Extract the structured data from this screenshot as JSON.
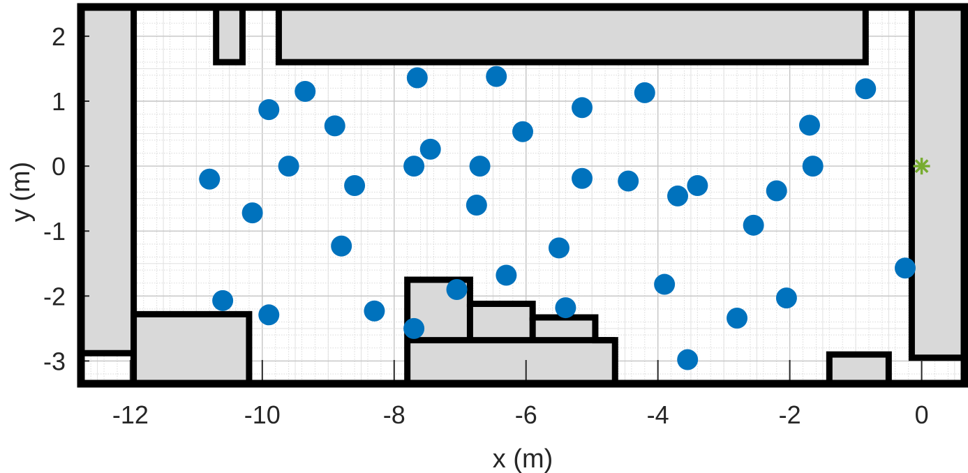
{
  "chart_data": {
    "type": "scatter",
    "title": "",
    "xlabel": "x (m)",
    "ylabel": "y (m)",
    "xlim": [
      -12.75,
      0.65
    ],
    "ylim": [
      -3.35,
      2.45
    ],
    "xticks": [
      -12,
      -10,
      -8,
      -6,
      -4,
      -2,
      0
    ],
    "yticks": [
      -3,
      -2,
      -1,
      0,
      1,
      2
    ],
    "xtick_labels": [
      "-12",
      "-10",
      "-8",
      "-6",
      "-4",
      "-2",
      "0"
    ],
    "ytick_labels": [
      "-3",
      "-2",
      "-1",
      "0",
      "1",
      "2"
    ],
    "grid": true,
    "minor_grid": true,
    "series": [
      {
        "marker": "circle",
        "color": "#0072BD",
        "points": [
          [
            -7.65,
            1.36
          ],
          [
            -6.45,
            1.38
          ],
          [
            -9.35,
            1.15
          ],
          [
            -4.2,
            1.13
          ],
          [
            -0.85,
            1.19
          ],
          [
            -9.9,
            0.87
          ],
          [
            -5.15,
            0.9
          ],
          [
            -8.9,
            0.62
          ],
          [
            -6.05,
            0.53
          ],
          [
            -1.7,
            0.63
          ],
          [
            -7.45,
            0.26
          ],
          [
            -9.6,
            0.0
          ],
          [
            -7.7,
            0.0
          ],
          [
            -6.7,
            0.0
          ],
          [
            -1.65,
            0.0
          ],
          [
            -10.8,
            -0.2
          ],
          [
            -8.6,
            -0.3
          ],
          [
            -5.15,
            -0.19
          ],
          [
            -4.45,
            -0.23
          ],
          [
            -3.7,
            -0.46
          ],
          [
            -3.4,
            -0.3
          ],
          [
            -2.2,
            -0.38
          ],
          [
            -10.15,
            -0.72
          ],
          [
            -6.75,
            -0.6
          ],
          [
            -2.55,
            -0.91
          ],
          [
            -8.8,
            -1.23
          ],
          [
            -5.5,
            -1.26
          ],
          [
            -0.25,
            -1.57
          ],
          [
            -6.3,
            -1.68
          ],
          [
            -3.9,
            -1.82
          ],
          [
            -7.05,
            -1.9
          ],
          [
            -10.6,
            -2.07
          ],
          [
            -9.9,
            -2.29
          ],
          [
            -8.3,
            -2.23
          ],
          [
            -5.4,
            -2.18
          ],
          [
            -2.05,
            -2.03
          ],
          [
            -2.8,
            -2.34
          ],
          [
            -7.7,
            -2.5
          ],
          [
            -3.55,
            -2.98
          ]
        ]
      },
      {
        "marker": "asterisk",
        "color": "#77AC30",
        "points": [
          [
            0.0,
            0.0
          ]
        ]
      }
    ],
    "obstacles": [
      [
        [
          -12.75,
          2.45
        ],
        [
          -11.95,
          2.45
        ],
        [
          -11.95,
          -2.88
        ],
        [
          -12.75,
          -2.88
        ]
      ],
      [
        [
          -10.7,
          2.45
        ],
        [
          -10.3,
          2.45
        ],
        [
          -10.3,
          1.6
        ],
        [
          -10.7,
          1.6
        ]
      ],
      [
        [
          -9.75,
          2.45
        ],
        [
          -0.85,
          2.45
        ],
        [
          -0.85,
          1.6
        ],
        [
          -9.75,
          1.6
        ]
      ],
      [
        [
          -0.15,
          2.45
        ],
        [
          0.65,
          2.45
        ],
        [
          0.65,
          -2.95
        ],
        [
          -0.15,
          -2.95
        ]
      ],
      [
        [
          -11.95,
          -2.28
        ],
        [
          -10.2,
          -2.28
        ],
        [
          -10.2,
          -3.35
        ],
        [
          -11.95,
          -3.35
        ]
      ],
      [
        [
          -7.8,
          -1.75
        ],
        [
          -6.85,
          -1.75
        ],
        [
          -6.85,
          -2.12
        ],
        [
          -5.9,
          -2.12
        ],
        [
          -5.9,
          -2.33
        ],
        [
          -4.95,
          -2.33
        ],
        [
          -4.95,
          -2.68
        ],
        [
          -4.65,
          -2.68
        ],
        [
          -4.65,
          -3.35
        ],
        [
          -7.8,
          -3.35
        ]
      ],
      [
        [
          -1.4,
          -2.9
        ],
        [
          -0.5,
          -2.9
        ],
        [
          -0.5,
          -3.35
        ],
        [
          -1.4,
          -3.35
        ]
      ]
    ],
    "obstacle_inner_edges": [
      [
        [
          -6.85,
          -2.12
        ],
        [
          -6.85,
          -2.68
        ]
      ],
      [
        [
          -5.9,
          -2.33
        ],
        [
          -5.9,
          -2.68
        ]
      ],
      [
        [
          -7.8,
          -2.68
        ],
        [
          -4.65,
          -2.68
        ]
      ]
    ]
  }
}
